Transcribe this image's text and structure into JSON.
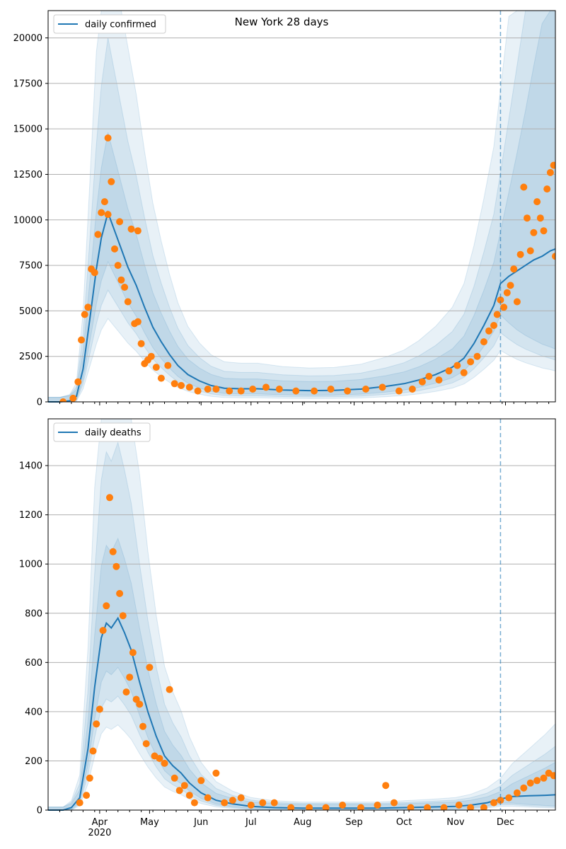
{
  "figure": {
    "title": "New York 28 days"
  },
  "colors": {
    "line": "#1f77b4",
    "points": "#ff7f0e",
    "band": "#1f77b4",
    "grid": "#b0b0b0",
    "vline": "#1f77b4"
  },
  "chart_data": [
    {
      "type": "line",
      "legend": {
        "entry": "daily confirmed",
        "placement": "upper-left"
      },
      "xlim": [
        "2020-03-01",
        "2020-12-31"
      ],
      "ylim": [
        0,
        21500
      ],
      "yticks": [
        0,
        2500,
        5000,
        7500,
        10000,
        12500,
        15000,
        17500,
        20000
      ],
      "ytick_labels": [
        "0",
        "2500",
        "5000",
        "7500",
        "10000",
        "12500",
        "15000",
        "17500",
        "20000"
      ],
      "grid": "y",
      "vline_date": "2020-11-28",
      "series": [
        {
          "name": "daily confirmed",
          "x": [
            "2020-03-01",
            "2020-03-08",
            "2020-03-14",
            "2020-03-18",
            "2020-03-22",
            "2020-03-26",
            "2020-03-30",
            "2020-04-02",
            "2020-04-06",
            "2020-04-10",
            "2020-04-14",
            "2020-04-18",
            "2020-04-23",
            "2020-04-28",
            "2020-05-03",
            "2020-05-08",
            "2020-05-13",
            "2020-05-18",
            "2020-05-24",
            "2020-05-31",
            "2020-06-07",
            "2020-06-15",
            "2020-06-25",
            "2020-07-05",
            "2020-07-20",
            "2020-08-05",
            "2020-08-20",
            "2020-09-05",
            "2020-09-20",
            "2020-10-01",
            "2020-10-10",
            "2020-10-20",
            "2020-10-30",
            "2020-11-06",
            "2020-11-12",
            "2020-11-18",
            "2020-11-24",
            "2020-11-28",
            "2020-12-03",
            "2020-12-08",
            "2020-12-13",
            "2020-12-18",
            "2020-12-23",
            "2020-12-28",
            "2020-12-31"
          ],
          "y": [
            0,
            0,
            60,
            300,
            1800,
            4500,
            7300,
            9000,
            10400,
            9400,
            8400,
            7400,
            6400,
            5200,
            4100,
            3300,
            2600,
            2000,
            1500,
            1150,
            900,
            750,
            720,
            720,
            650,
            620,
            630,
            700,
            850,
            1000,
            1200,
            1500,
            1900,
            2400,
            3200,
            4200,
            5300,
            6500,
            6900,
            7200,
            7500,
            7800,
            8000,
            8300,
            8400
          ]
        }
      ],
      "points": {
        "x": [
          "2020-03-10",
          "2020-03-16",
          "2020-03-19",
          "2020-03-21",
          "2020-03-23",
          "2020-03-25",
          "2020-03-27",
          "2020-03-29",
          "2020-03-31",
          "2020-04-02",
          "2020-04-04",
          "2020-04-06",
          "2020-04-08",
          "2020-04-10",
          "2020-04-12",
          "2020-04-14",
          "2020-04-16",
          "2020-04-18",
          "2020-04-20",
          "2020-04-22",
          "2020-04-24",
          "2020-04-26",
          "2020-04-28",
          "2020-04-30",
          "2020-05-02",
          "2020-05-05",
          "2020-05-08",
          "2020-05-12",
          "2020-05-16",
          "2020-05-20",
          "2020-05-25",
          "2020-05-30",
          "2020-06-05",
          "2020-06-10",
          "2020-06-18",
          "2020-06-25",
          "2020-07-02",
          "2020-07-10",
          "2020-07-18",
          "2020-07-28",
          "2020-08-08",
          "2020-08-18",
          "2020-08-28",
          "2020-09-08",
          "2020-09-18",
          "2020-09-28",
          "2020-10-06",
          "2020-10-12",
          "2020-10-16",
          "2020-10-22",
          "2020-10-28",
          "2020-11-02",
          "2020-11-06",
          "2020-11-10",
          "2020-11-14",
          "2020-11-18",
          "2020-11-21",
          "2020-11-24",
          "2020-11-26",
          "2020-11-28",
          "2020-11-30",
          "2020-12-02",
          "2020-12-04",
          "2020-12-06",
          "2020-12-08",
          "2020-12-10",
          "2020-12-12",
          "2020-12-14",
          "2020-12-16",
          "2020-12-18",
          "2020-12-20",
          "2020-12-22",
          "2020-12-24",
          "2020-12-26",
          "2020-12-28",
          "2020-12-30",
          "2020-12-31",
          "2020-04-06",
          "2020-04-13",
          "2020-04-24"
        ],
        "y": [
          0,
          200,
          1100,
          3400,
          4800,
          5200,
          7300,
          7100,
          9200,
          10400,
          11000,
          10300,
          12100,
          8400,
          7500,
          6700,
          6300,
          5500,
          9500,
          4300,
          4400,
          3200,
          2100,
          2300,
          2500,
          1900,
          1300,
          2000,
          1000,
          900,
          800,
          600,
          700,
          700,
          600,
          600,
          700,
          800,
          700,
          600,
          600,
          700,
          600,
          700,
          800,
          600,
          700,
          1100,
          1400,
          1200,
          1700,
          2000,
          1600,
          2200,
          2500,
          3300,
          3900,
          4200,
          4800,
          5600,
          5200,
          6000,
          6400,
          7300,
          5500,
          8100,
          11800,
          10100,
          8300,
          9300,
          11000,
          10100,
          9400,
          11700,
          12600,
          13000,
          8000,
          14500,
          9900,
          9400
        ]
      },
      "bands_note": "shaded credible intervals widening toward the forecast period"
    },
    {
      "type": "line",
      "legend": {
        "entry": "daily deaths",
        "placement": "upper-left"
      },
      "xlim": [
        "2020-03-01",
        "2020-12-31"
      ],
      "ylim": [
        0,
        1590
      ],
      "yticks": [
        0,
        200,
        400,
        600,
        800,
        1000,
        1200,
        1400
      ],
      "ytick_labels": [
        "0",
        "200",
        "400",
        "600",
        "800",
        "1000",
        "1200",
        "1400"
      ],
      "xtick_labels": [
        "Apr\n2020",
        "May",
        "Jun",
        "Jul",
        "Aug",
        "Sep",
        "Oct",
        "Nov",
        "Dec"
      ],
      "xtick_dates": [
        "2020-04-01",
        "2020-05-01",
        "2020-06-01",
        "2020-07-01",
        "2020-08-01",
        "2020-09-01",
        "2020-10-01",
        "2020-11-01",
        "2020-12-01"
      ],
      "grid": "y",
      "vline_date": "2020-11-28",
      "series": [
        {
          "name": "daily deaths",
          "x": [
            "2020-03-01",
            "2020-03-10",
            "2020-03-15",
            "2020-03-20",
            "2020-03-25",
            "2020-03-29",
            "2020-04-02",
            "2020-04-05",
            "2020-04-08",
            "2020-04-12",
            "2020-04-16",
            "2020-04-20",
            "2020-04-25",
            "2020-04-30",
            "2020-05-05",
            "2020-05-10",
            "2020-05-15",
            "2020-05-20",
            "2020-05-25",
            "2020-06-01",
            "2020-06-10",
            "2020-06-20",
            "2020-07-01",
            "2020-07-15",
            "2020-08-01",
            "2020-08-15",
            "2020-09-01",
            "2020-09-15",
            "2020-10-01",
            "2020-10-15",
            "2020-11-01",
            "2020-11-10",
            "2020-11-20",
            "2020-11-28",
            "2020-12-05",
            "2020-12-15",
            "2020-12-25",
            "2020-12-31"
          ],
          "y": [
            0,
            0,
            10,
            50,
            250,
            500,
            700,
            760,
            740,
            780,
            720,
            650,
            520,
            400,
            300,
            220,
            180,
            150,
            110,
            70,
            40,
            25,
            15,
            10,
            8,
            8,
            8,
            8,
            10,
            12,
            15,
            20,
            30,
            45,
            55,
            58,
            60,
            62
          ]
        }
      ],
      "points": {
        "x": [
          "2020-03-20",
          "2020-03-24",
          "2020-03-26",
          "2020-03-28",
          "2020-03-30",
          "2020-04-01",
          "2020-04-03",
          "2020-04-05",
          "2020-04-07",
          "2020-04-09",
          "2020-04-11",
          "2020-04-13",
          "2020-04-15",
          "2020-04-17",
          "2020-04-19",
          "2020-04-21",
          "2020-04-23",
          "2020-04-25",
          "2020-04-27",
          "2020-04-29",
          "2020-05-01",
          "2020-05-04",
          "2020-05-07",
          "2020-05-10",
          "2020-05-13",
          "2020-05-16",
          "2020-05-19",
          "2020-05-22",
          "2020-05-25",
          "2020-05-28",
          "2020-06-01",
          "2020-06-05",
          "2020-06-10",
          "2020-06-15",
          "2020-06-20",
          "2020-06-25",
          "2020-07-01",
          "2020-07-08",
          "2020-07-15",
          "2020-07-25",
          "2020-08-05",
          "2020-08-15",
          "2020-08-25",
          "2020-09-05",
          "2020-09-15",
          "2020-09-20",
          "2020-09-25",
          "2020-10-05",
          "2020-10-15",
          "2020-10-25",
          "2020-11-03",
          "2020-11-10",
          "2020-11-18",
          "2020-11-24",
          "2020-11-28",
          "2020-12-03",
          "2020-12-08",
          "2020-12-12",
          "2020-12-16",
          "2020-12-20",
          "2020-12-24",
          "2020-12-27",
          "2020-12-30"
        ],
        "y": [
          30,
          60,
          130,
          240,
          350,
          410,
          730,
          830,
          1270,
          1050,
          990,
          880,
          790,
          480,
          540,
          640,
          450,
          430,
          340,
          270,
          580,
          220,
          210,
          190,
          490,
          130,
          80,
          100,
          60,
          30,
          120,
          50,
          150,
          30,
          40,
          50,
          20,
          30,
          30,
          10,
          10,
          10,
          20,
          10,
          20,
          100,
          30,
          10,
          10,
          10,
          20,
          10,
          10,
          30,
          40,
          50,
          70,
          90,
          110,
          120,
          130,
          150,
          140
        ]
      },
      "bands_note": "shaded credible intervals, widest near the April peak"
    }
  ]
}
